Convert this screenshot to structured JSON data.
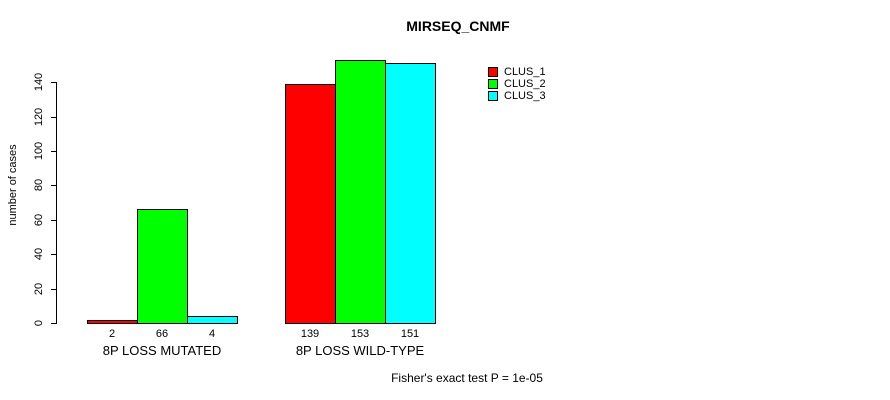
{
  "chart_data": {
    "type": "bar",
    "title": "MIRSEQ_CNMF",
    "ylabel": "number of cases",
    "xlabel": "",
    "categories": [
      "8P LOSS MUTATED",
      "8P LOSS WILD-TYPE"
    ],
    "series": [
      {
        "name": "CLUS_1",
        "color": "#ff0000",
        "values": [
          2,
          139
        ]
      },
      {
        "name": "CLUS_2",
        "color": "#00ff00",
        "values": [
          66,
          153
        ]
      },
      {
        "name": "CLUS_3",
        "color": "#00ffff",
        "values": [
          4,
          151
        ]
      }
    ],
    "yticks": [
      0,
      20,
      40,
      60,
      80,
      100,
      120,
      140
    ],
    "ylim": [
      0,
      155
    ],
    "grid": false,
    "bar_value_labels_shown": true,
    "legend_position": "top-right",
    "legend_items": [
      "CLUS_1",
      "CLUS_2",
      "CLUS_3"
    ],
    "bar_border_color": "#000000",
    "axis_color": "#000000",
    "background_color": "#ffffff",
    "annotation": "Fisher's exact test P = 1e-05"
  }
}
